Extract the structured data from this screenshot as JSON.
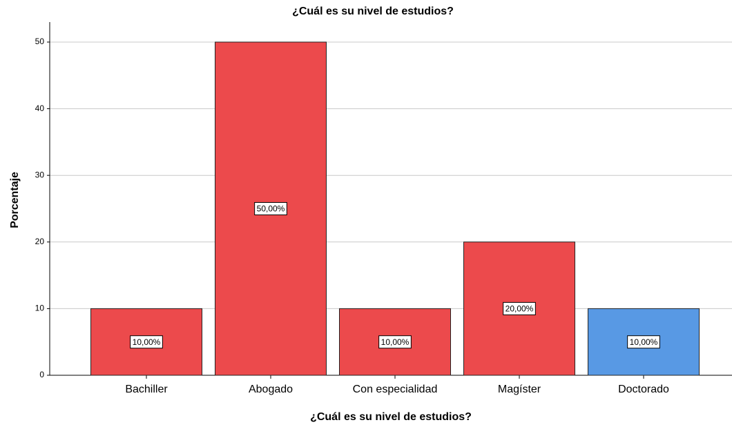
{
  "chart_data": {
    "type": "bar",
    "title": "¿Cuál es su nivel de estudios?",
    "x_label": "¿Cuál es su nivel de estudios?",
    "y_label": "Porcentaje",
    "categories": [
      "Bachiller",
      "Abogado",
      "Con especialidad",
      "Magíster",
      "Doctorado"
    ],
    "values": [
      10,
      50,
      10,
      20,
      10
    ],
    "value_labels": [
      "10,00%",
      "50,00%",
      "10,00%",
      "20,00%",
      "10,00%"
    ],
    "colors": [
      "#ec4a4c",
      "#ec4a4c",
      "#ec4a4c",
      "#ec4a4c",
      "#5899e4"
    ],
    "ylim": [
      0,
      53
    ],
    "yticks": [
      0,
      10,
      20,
      30,
      40,
      50
    ],
    "grid": true
  }
}
